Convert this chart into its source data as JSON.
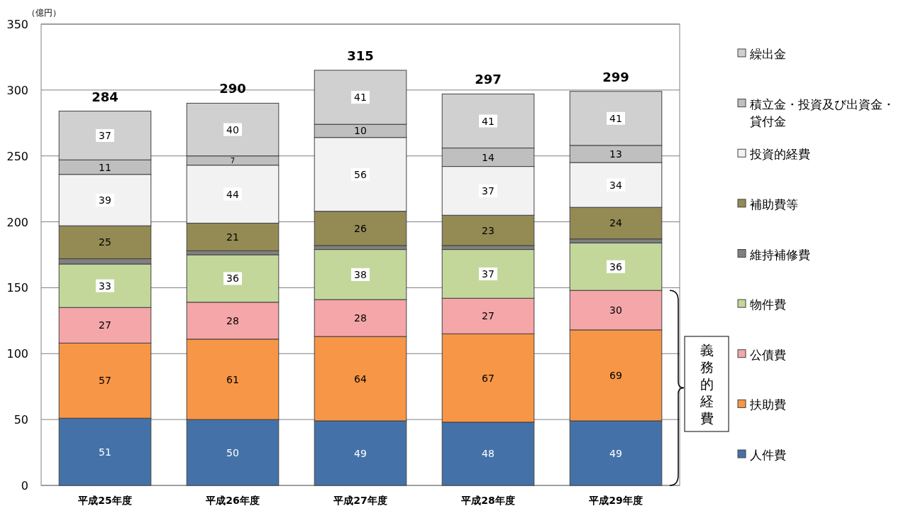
{
  "chart_data": {
    "type": "bar",
    "stacked": true,
    "ylabel": "（億円）",
    "categories": [
      "平成25年度",
      "平成26年度",
      "平成27年度",
      "平成28年度",
      "平成29年度"
    ],
    "ylim": [
      0,
      350
    ],
    "yticks": [
      0,
      50,
      100,
      150,
      200,
      250,
      300,
      350
    ],
    "grid": "y",
    "legend": "right",
    "series": [
      {
        "name": "人件費",
        "color": "#4472a8",
        "values": [
          51,
          50,
          49,
          48,
          49
        ]
      },
      {
        "name": "扶助費",
        "color": "#f79646",
        "values": [
          57,
          61,
          64,
          67,
          69
        ]
      },
      {
        "name": "公債費",
        "color": "#f4a6a8",
        "values": [
          27,
          28,
          28,
          27,
          30
        ]
      },
      {
        "name": "物件費",
        "color": "#c4d79b",
        "values": [
          33,
          36,
          38,
          37,
          36
        ]
      },
      {
        "name": "維持補修費",
        "color": "#808080",
        "values": [
          4,
          3,
          3,
          3,
          3
        ],
        "value_labels": [
          null,
          null,
          null,
          null,
          null
        ]
      },
      {
        "name": "補助費等",
        "color": "#948a54",
        "values": [
          25,
          21,
          26,
          23,
          24
        ]
      },
      {
        "name": "投資的経費",
        "color": "#f2f2f2",
        "values": [
          39,
          44,
          56,
          37,
          34
        ]
      },
      {
        "name": "積立金・投資及び出資金・貸付金",
        "color": "#bfbfbf",
        "values": [
          11,
          7,
          10,
          14,
          13
        ]
      },
      {
        "name": "繰出金",
        "color": "#d0d0d0",
        "values": [
          37,
          40,
          41,
          41,
          41
        ]
      }
    ],
    "data_labels": true,
    "totals": [
      "284",
      "290",
      "315",
      "297",
      "299"
    ],
    "annotations": [
      "義務的経費"
    ]
  }
}
